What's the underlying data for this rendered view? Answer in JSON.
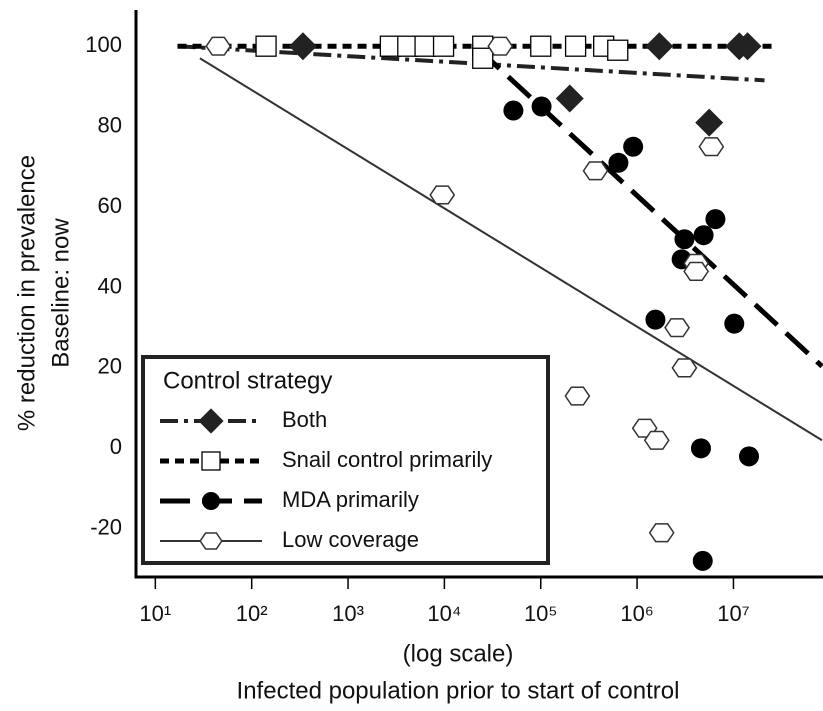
{
  "chart_data": {
    "type": "scatter",
    "y_label": [
      "% reduction in prevalence",
      "Baseline: now"
    ],
    "x_label": [
      "(log scale)",
      "Infected population prior to start of control"
    ],
    "log_x": true,
    "xlim": [
      6.3,
      85000000
    ],
    "ylim": [
      -32,
      109
    ],
    "xticks": [
      {
        "value": 10,
        "label": "10¹"
      },
      {
        "value": 100,
        "label": "10²"
      },
      {
        "value": 1000,
        "label": "10³"
      },
      {
        "value": 10000,
        "label": "10⁴"
      },
      {
        "value": 100000,
        "label": "10⁵"
      },
      {
        "value": 1000000,
        "label": "10⁶"
      },
      {
        "value": 10000000,
        "label": "10⁷"
      }
    ],
    "yticks": [
      -20,
      0,
      20,
      40,
      60,
      80,
      100
    ],
    "legend_title": "Control strategy",
    "legend_position": "lower left",
    "series": [
      {
        "name": "Both",
        "color": "#222222",
        "marker": "diamond",
        "line_style": "dashdot",
        "x": [
          340,
          1700000,
          11500000,
          14000000,
          200000,
          5600000
        ],
        "values": [
          100,
          100,
          100,
          100,
          87,
          81
        ],
        "trend_x": [
          17,
          21000000
        ],
        "trend_y": [
          100,
          91.5
        ]
      },
      {
        "name": "Snail control primarily",
        "color": "#000000",
        "marker": "square",
        "line_style": "dashed",
        "x": [
          141,
          2750,
          4170,
          6300,
          9800,
          25000,
          25000,
          100000,
          230000,
          450000,
          630000
        ],
        "values": [
          100,
          100,
          100,
          100,
          100,
          100,
          97,
          100,
          100,
          100,
          99
        ],
        "trend_x": [
          17,
          28000000
        ],
        "trend_y": [
          100,
          100
        ]
      },
      {
        "name": "MDA primarily",
        "color": "#000000",
        "marker": "circle",
        "line_style": "longdash",
        "x": [
          52000,
          102000,
          640000,
          910000,
          3100000,
          2900000,
          4900000,
          6500000,
          1550000,
          10200000,
          4600000,
          14500000,
          4800000
        ],
        "values": [
          84,
          85,
          71,
          75,
          52,
          47,
          53,
          57,
          32,
          31,
          0,
          -2,
          -28
        ],
        "trend_x": [
          22000,
          83000000
        ],
        "trend_y": [
          99.5,
          20.4
        ]
      },
      {
        "name": "Low coverage",
        "color": "#333333",
        "marker": "hexagon",
        "line_style": "solid",
        "x": [
          45,
          38000,
          9500,
          370000,
          5900000,
          4100000,
          4100000,
          2600000,
          3100000,
          240000,
          1200000,
          1600000,
          1800000
        ],
        "values": [
          100,
          100,
          63,
          69,
          75,
          46,
          44,
          30,
          20,
          13,
          5,
          2,
          -21
        ],
        "trend_x": [
          29,
          83000000
        ],
        "trend_y": [
          97,
          2
        ]
      }
    ]
  }
}
